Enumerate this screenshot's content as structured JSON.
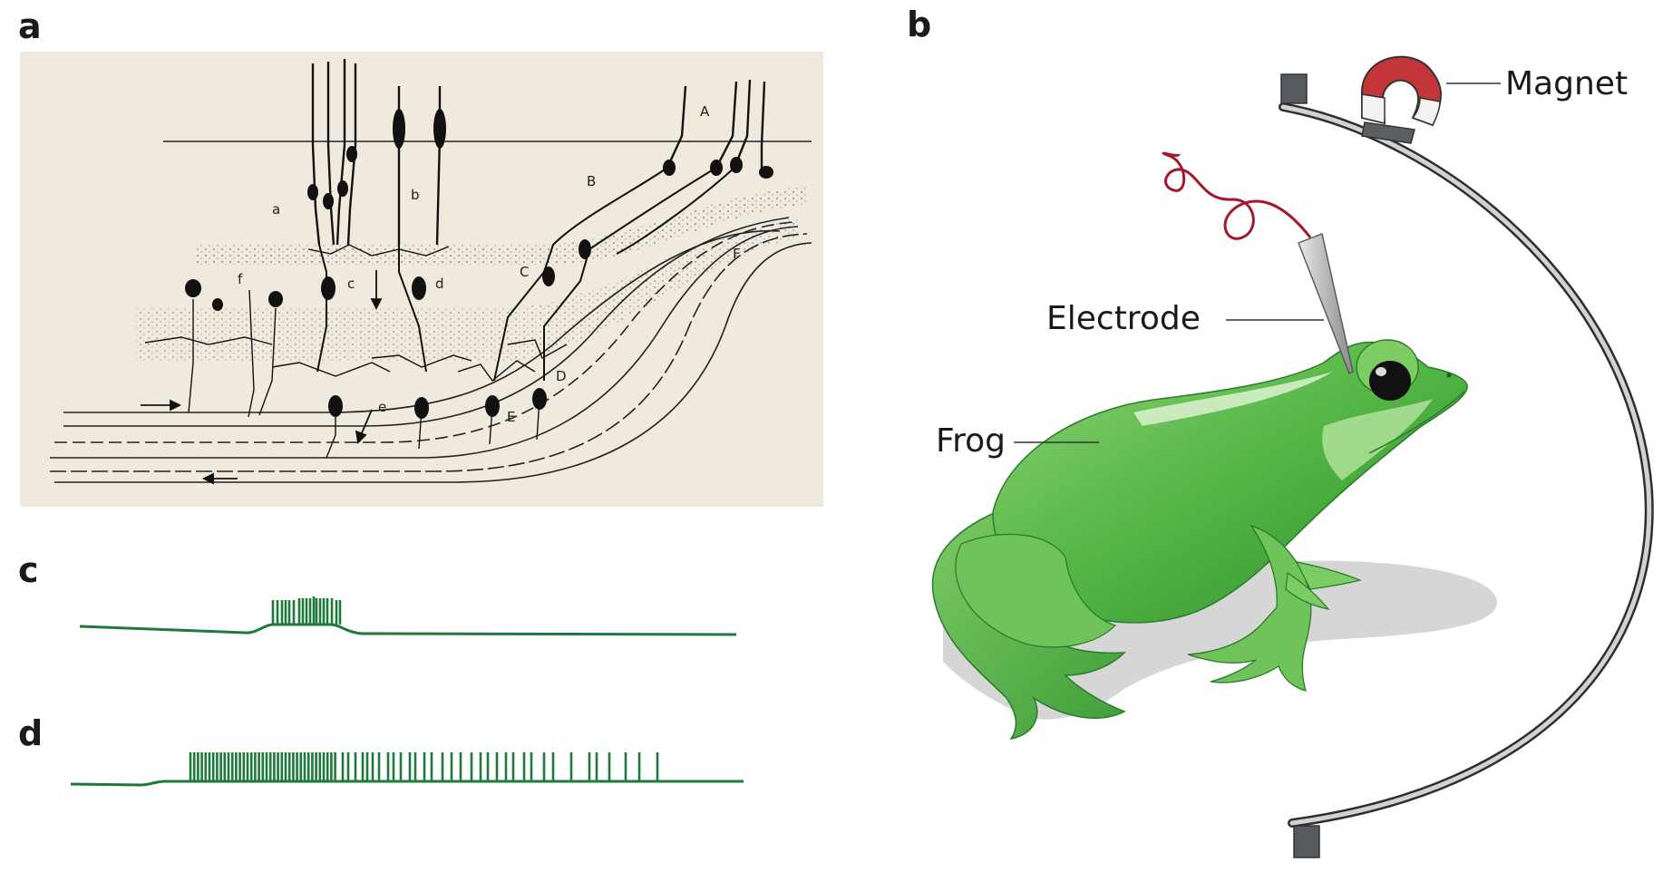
{
  "panels": {
    "a": "a",
    "b": "b",
    "c": "c",
    "d": "d"
  },
  "retina_letters": {
    "A": "A",
    "B": "B",
    "C": "C",
    "D": "D",
    "E": "E",
    "F": "F",
    "a": "a",
    "b": "b",
    "c": "c",
    "d": "d",
    "e": "e",
    "f": "f"
  },
  "labels": {
    "magnet": "Magnet",
    "electrode": "Electrode",
    "frog": "Frog"
  },
  "colors": {
    "trace": "#1e7a3a",
    "retina_bg": "#f0e9de",
    "magnet": "#c4353a",
    "electrode_wire": "#a3182a",
    "frog": "#5cb94a"
  }
}
